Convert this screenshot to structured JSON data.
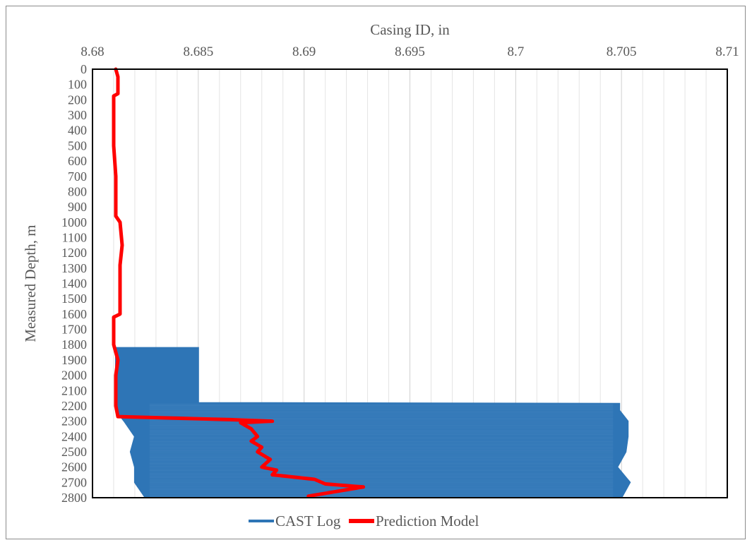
{
  "chart_data": {
    "type": "line",
    "xlabel": "Casing ID, in",
    "ylabel": "Measured Depth, m",
    "x_axis_position": "top",
    "y_axis_inverted": true,
    "xlim": [
      8.68,
      8.71
    ],
    "ylim": [
      0,
      2800
    ],
    "x_ticks": [
      "8.68",
      "8.685",
      "8.69",
      "8.695",
      "8.7",
      "8.705",
      "8.71"
    ],
    "y_ticks": [
      "0",
      "100",
      "200",
      "300",
      "400",
      "500",
      "600",
      "700",
      "800",
      "900",
      "1000",
      "1100",
      "1200",
      "1300",
      "1400",
      "1500",
      "1600",
      "1700",
      "1800",
      "1900",
      "2000",
      "2100",
      "2200",
      "2300",
      "2400",
      "2500",
      "2600",
      "2700",
      "2800"
    ],
    "grid": "vertical",
    "legend_position": "bottom",
    "series": [
      {
        "name": "CAST Log",
        "color": "#2e75b6",
        "points": [
          {
            "depth": 1820,
            "id_min": 8.6811,
            "id_max": 8.685
          },
          {
            "depth": 2180,
            "id_min": 8.6811,
            "id_max": 8.685
          },
          {
            "depth": 2185,
            "id_min": 8.6811,
            "id_max": 8.7049
          },
          {
            "depth": 2230,
            "id_min": 8.6811,
            "id_max": 8.7049
          },
          {
            "depth": 2300,
            "id_min": 8.6815,
            "id_max": 8.7053
          },
          {
            "depth": 2400,
            "id_min": 8.682,
            "id_max": 8.7053
          },
          {
            "depth": 2500,
            "id_min": 8.6818,
            "id_max": 8.7052
          },
          {
            "depth": 2600,
            "id_min": 8.682,
            "id_max": 8.7048
          },
          {
            "depth": 2700,
            "id_min": 8.682,
            "id_max": 8.7054
          },
          {
            "depth": 2800,
            "id_min": 8.6825,
            "id_max": 8.705
          }
        ]
      },
      {
        "name": "Prediction Model",
        "color": "#ff0000",
        "points": [
          {
            "depth": 0,
            "id": 8.6811
          },
          {
            "depth": 50,
            "id": 8.6812
          },
          {
            "depth": 100,
            "id": 8.6812
          },
          {
            "depth": 160,
            "id": 8.6812
          },
          {
            "depth": 175,
            "id": 8.681
          },
          {
            "depth": 300,
            "id": 8.681
          },
          {
            "depth": 500,
            "id": 8.681
          },
          {
            "depth": 700,
            "id": 8.6811
          },
          {
            "depth": 960,
            "id": 8.6811
          },
          {
            "depth": 980,
            "id": 8.6812
          },
          {
            "depth": 1000,
            "id": 8.6813
          },
          {
            "depth": 1150,
            "id": 8.6814
          },
          {
            "depth": 1280,
            "id": 8.6813
          },
          {
            "depth": 1400,
            "id": 8.6813
          },
          {
            "depth": 1500,
            "id": 8.6813
          },
          {
            "depth": 1600,
            "id": 8.6813
          },
          {
            "depth": 1620,
            "id": 8.681
          },
          {
            "depth": 1800,
            "id": 8.681
          },
          {
            "depth": 1900,
            "id": 8.6812
          },
          {
            "depth": 2000,
            "id": 8.6811
          },
          {
            "depth": 2200,
            "id": 8.6811
          },
          {
            "depth": 2270,
            "id": 8.6812
          },
          {
            "depth": 2290,
            "id": 8.6865
          },
          {
            "depth": 2300,
            "id": 8.6885
          },
          {
            "depth": 2310,
            "id": 8.687
          },
          {
            "depth": 2350,
            "id": 8.6875
          },
          {
            "depth": 2400,
            "id": 8.6878
          },
          {
            "depth": 2430,
            "id": 8.6875
          },
          {
            "depth": 2470,
            "id": 8.688
          },
          {
            "depth": 2500,
            "id": 8.6878
          },
          {
            "depth": 2550,
            "id": 8.6884
          },
          {
            "depth": 2600,
            "id": 8.688
          },
          {
            "depth": 2620,
            "id": 8.6887
          },
          {
            "depth": 2650,
            "id": 8.6885
          },
          {
            "depth": 2680,
            "id": 8.6905
          },
          {
            "depth": 2710,
            "id": 8.691
          },
          {
            "depth": 2730,
            "id": 8.6928
          },
          {
            "depth": 2760,
            "id": 8.6915
          },
          {
            "depth": 2790,
            "id": 8.6902
          }
        ]
      }
    ]
  }
}
